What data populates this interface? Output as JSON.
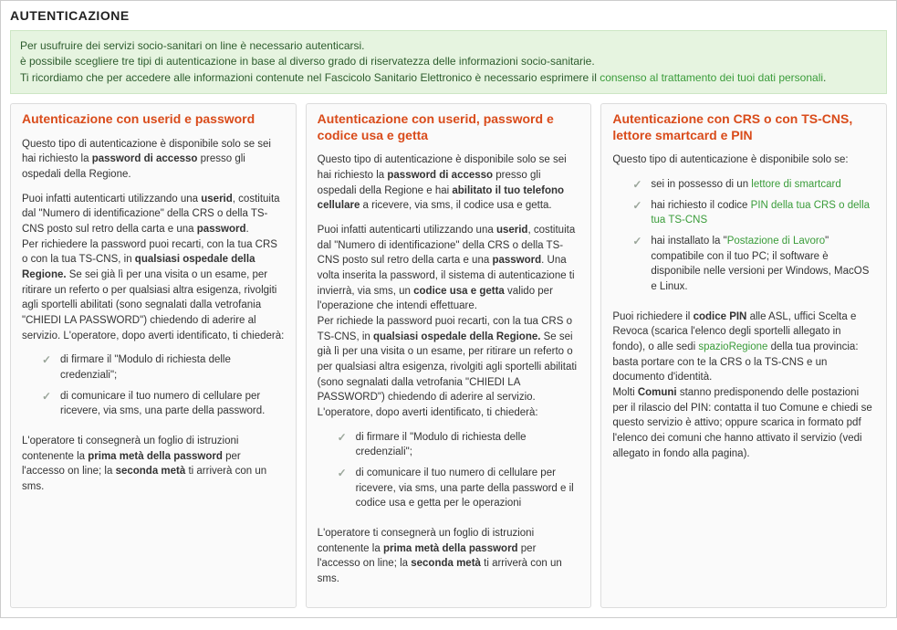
{
  "colors": {
    "accent_orange": "#d94b1a",
    "green_link": "#3a9c3a",
    "notice_bg": "#e6f4e0",
    "notice_border": "#cde6c4",
    "card_bg": "#fafafa",
    "card_border": "#dcdcdc",
    "check_color": "#9aa69a",
    "text": "#333333"
  },
  "page_title": "AUTENTICAZIONE",
  "notice": {
    "line1": "Per usufruire dei servizi socio-sanitari on line è necessario autenticarsi.",
    "line2": "è possibile scegliere tre tipi di autenticazione in base al diverso grado di riservatezza delle informazioni socio-sanitarie.",
    "line3_pre": "Ti ricordiamo che per accedere alle informazioni contenute nel Fascicolo Sanitario Elettronico è necessario esprimere il ",
    "line3_link": "consenso al trattamento dei tuoi dati personali",
    "line3_post": "."
  },
  "col1": {
    "title": "Autenticazione con userid e password",
    "p1_pre": "Questo tipo di autenticazione è disponibile solo se sei hai richiesto la ",
    "p1_bold": "password di accesso",
    "p1_post": " presso gli ospedali della Regione.",
    "p2_a": "Puoi infatti autenticarti utilizzando una ",
    "p2_b": "userid",
    "p2_c": ", costituita dal \"Numero di identificazione\" della CRS o della TS-CNS posto sul retro della carta e una ",
    "p2_d": "password",
    "p2_e": ".",
    "p3_a": "Per richiedere la password puoi recarti, con la tua CRS o con la tua TS-CNS, in ",
    "p3_b": "qualsiasi ospedale della Regione.",
    "p3_c": " Se sei già lì per una visita o un esame, per ritirare un referto o per qualsiasi altra esigenza, rivolgiti agli sportelli abilitati (sono segnalati dalla vetrofania \"CHIEDI LA PASSWORD\") chiedendo di aderire al servizio. L'operatore, dopo averti identificato, ti chiederà:",
    "li1": "di firmare il \"Modulo di richiesta delle credenziali\";",
    "li2": "di comunicare il tuo numero di cellulare per ricevere, via sms, una parte della password.",
    "p4_a": "L'operatore ti consegnerà un foglio di istruzioni contenente la ",
    "p4_b": "prima metà della password",
    "p4_c": " per l'accesso on line; la ",
    "p4_d": "seconda metà",
    "p4_e": " ti arriverà con un sms."
  },
  "col2": {
    "title": "Autenticazione con userid, password e codice usa e getta",
    "p1_a": "Questo tipo di autenticazione è disponibile solo se sei hai richiesto la ",
    "p1_b": "password di accesso",
    "p1_c": " presso gli ospedali della Regione e hai ",
    "p1_d": "abilitato il tuo telefono cellulare",
    "p1_e": " a ricevere, via sms, il codice usa e getta.",
    "p2_a": "Puoi infatti autenticarti utilizzando una ",
    "p2_b": "userid",
    "p2_c": ", costituita dal \"Numero di identificazione\" della CRS o della TS-CNS posto sul retro della carta e una ",
    "p2_d": "password",
    "p2_e": ". Una volta inserita la password, il sistema di autenticazione ti invierrà, via sms, un ",
    "p2_f": "codice usa e getta",
    "p2_g": " valido per l'operazione che intendi effettuare.",
    "p3_a": "Per richiede la password puoi recarti, con la tua CRS o TS-CNS, in ",
    "p3_b": "qualsiasi ospedale della Regione.",
    "p3_c": " Se sei già lì per una visita o un esame, per ritirare un referto o per qualsiasi altra esigenza, rivolgiti agli sportelli abilitati (sono segnalati dalla vetrofania \"CHIEDI LA PASSWORD\") chiedendo di aderire al servizio. L'operatore, dopo averti identificato, ti chiederà:",
    "li1": "di firmare il \"Modulo di richiesta delle credenziali\";",
    "li2": "di comunicare il tuo numero di cellulare per ricevere, via sms, una parte della password e il codice usa e getta per le operazioni",
    "p4_a": "L'operatore ti consegnerà un foglio di istruzioni contenente la ",
    "p4_b": "prima metà della password",
    "p4_c": " per l'accesso on line; la ",
    "p4_d": "seconda metà",
    "p4_e": " ti arriverà con un sms."
  },
  "col3": {
    "title": "Autenticazione con CRS o con TS-CNS, lettore smartcard e PIN",
    "p1": "Questo tipo di autenticazione è disponibile solo se:",
    "li1_a": "sei in possesso di un ",
    "li1_link": "lettore di smartcard",
    "li2_a": "hai richiesto il codice ",
    "li2_link": "PIN della tua CRS o della tua TS-CNS",
    "li3_a": "hai installato la \"",
    "li3_link": "Postazione di Lavoro",
    "li3_b": "\" compatibile con il tuo PC; il software è disponibile nelle versioni per Windows, MacOS e Linux.",
    "p2_a": "Puoi richiedere il ",
    "p2_b": "codice PIN",
    "p2_c": " alle ASL, uffici Scelta e Revoca (scarica l'elenco degli sportelli allegato in fondo), o alle sedi ",
    "p2_link": "spazioRegione",
    "p2_d": " della tua provincia: basta portare con te la CRS o la TS-CNS e un documento d'identità.",
    "p3_a": "Molti ",
    "p3_b": "Comuni",
    "p3_c": " stanno predisponendo delle postazioni per il rilascio del PIN: contatta il tuo Comune e chiedi se questo servizio è attivo; oppure scarica in formato pdf l'elenco dei comuni che hanno attivato il servizio (vedi allegato in fondo alla pagina)."
  }
}
